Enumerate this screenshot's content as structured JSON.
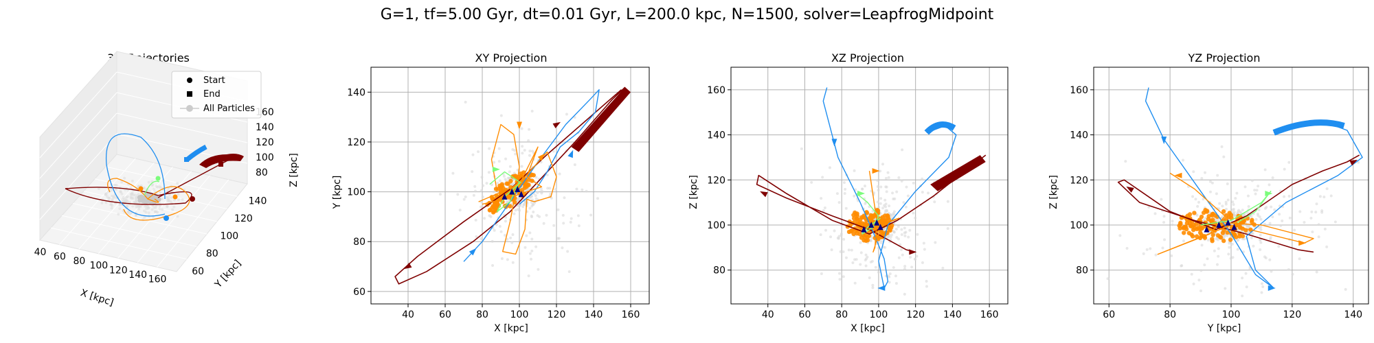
{
  "figure": {
    "suptitle": "G=1, tf=5.00 Gyr, dt=0.01 Gyr, L=200.0 kpc, N=1500, solver=LeapfrogMidpoint"
  },
  "colors": {
    "blue": "#1f8ef0",
    "dark_red": "#7f0000",
    "orange": "#ff8c00",
    "light_green": "#7cfc7c",
    "navy": "#000080",
    "background_particles": "#cccccc"
  },
  "legend": {
    "start": "Start",
    "end": "End",
    "all": "All Particles"
  },
  "chart_data": [
    {
      "type": "line3d",
      "title": "3D Trajectories",
      "xlabel": "X [kpc]",
      "ylabel": "Y [kpc]",
      "zlabel": "Z [kpc]",
      "xticks": [
        "40",
        "60",
        "80",
        "100",
        "120",
        "140",
        "160"
      ],
      "yticks": [
        "60",
        "80",
        "100",
        "120",
        "140"
      ],
      "zticks": [
        "80",
        "100",
        "120",
        "140",
        "160"
      ]
    },
    {
      "type": "line",
      "title": "XY Projection",
      "xlabel": "X [kpc]",
      "ylabel": "Y [kpc]",
      "xlim": [
        20,
        170
      ],
      "ylim": [
        55,
        150
      ],
      "xticks": [
        40,
        60,
        80,
        100,
        120,
        140,
        160
      ],
      "yticks": [
        60,
        80,
        100,
        120,
        140
      ],
      "series": [
        {
          "color": "#7f0000",
          "points": [
            [
              157,
              142
            ],
            [
              150,
              137
            ],
            [
              130,
              120
            ],
            [
              110,
              104
            ],
            [
              95,
              92
            ],
            [
              75,
              80
            ],
            [
              50,
              68
            ],
            [
              35,
              63
            ],
            [
              33,
              66
            ],
            [
              45,
              74
            ],
            [
              70,
              88
            ],
            [
              95,
              101
            ],
            [
              115,
              115
            ],
            [
              135,
              128
            ],
            [
              155,
              141
            ]
          ]
        },
        {
          "color": "#1f8ef0",
          "points": [
            [
              70,
              72
            ],
            [
              80,
              80
            ],
            [
              95,
              96
            ],
            [
              110,
              112
            ],
            [
              125,
              127
            ],
            [
              138,
              137
            ],
            [
              143,
              141
            ],
            [
              141,
              132
            ],
            [
              132,
              124
            ],
            [
              122,
              118
            ],
            [
              115,
              108
            ],
            [
              108,
              100
            ],
            [
              100,
              95
            ]
          ]
        },
        {
          "color": "#ff8c00",
          "points": [
            [
              88,
              100
            ],
            [
              85,
              113
            ],
            [
              90,
              127
            ],
            [
              97,
              123
            ],
            [
              100,
              110
            ],
            [
              98,
              100
            ],
            [
              95,
              88
            ],
            [
              91,
              76
            ],
            [
              98,
              75
            ],
            [
              103,
              85
            ],
            [
              104,
              97
            ],
            [
              108,
              96
            ],
            [
              117,
              98
            ],
            [
              120,
              106
            ],
            [
              115,
              116
            ],
            [
              103,
              106
            ],
            [
              95,
              101
            ]
          ]
        },
        {
          "color": "#ff8c00",
          "points": [
            [
              78,
              96
            ],
            [
              100,
              103
            ],
            [
              110,
              118
            ],
            [
              104,
              106
            ],
            [
              112,
              102
            ],
            [
              96,
              98
            ],
            [
              80,
              95
            ]
          ]
        },
        {
          "color": "#7cfc7c",
          "points": [
            [
              84,
              103
            ],
            [
              92,
              108
            ],
            [
              100,
              104
            ],
            [
              95,
              96
            ],
            [
              88,
              92
            ],
            [
              92,
              98
            ],
            [
              101,
              104
            ]
          ]
        }
      ],
      "arrows": [
        {
          "color": "#7f0000",
          "at": [
            40,
            70
          ],
          "dir": [
            -1,
            -0.6
          ]
        },
        {
          "color": "#7f0000",
          "at": [
            120,
            127
          ],
          "dir": [
            1,
            0.6
          ]
        },
        {
          "color": "#1f8ef0",
          "at": [
            75,
            76
          ],
          "dir": [
            1,
            1
          ]
        },
        {
          "color": "#1f8ef0",
          "at": [
            128,
            115
          ],
          "dir": [
            0.4,
            1
          ]
        },
        {
          "color": "#ff8c00",
          "at": [
            100,
            127
          ],
          "dir": [
            0,
            -1
          ]
        },
        {
          "color": "#ff8c00",
          "at": [
            112,
            114
          ],
          "dir": [
            1,
            1
          ]
        },
        {
          "color": "#7cfc7c",
          "at": [
            87,
            109
          ],
          "dir": [
            1,
            0
          ]
        }
      ]
    },
    {
      "type": "line",
      "title": "XZ Projection",
      "xlabel": "X [kpc]",
      "ylabel": "Z [kpc]",
      "xlim": [
        20,
        170
      ],
      "ylim": [
        65,
        170
      ],
      "xticks": [
        40,
        60,
        80,
        100,
        120,
        140,
        160
      ],
      "yticks": [
        80,
        100,
        120,
        140,
        160
      ],
      "series": [
        {
          "color": "#7f0000",
          "points": [
            [
              158,
              131
            ],
            [
              150,
              126
            ],
            [
              130,
              113
            ],
            [
              110,
              102
            ],
            [
              95,
              96
            ],
            [
              75,
              102
            ],
            [
              50,
              114
            ],
            [
              35,
              122
            ],
            [
              34,
              118
            ],
            [
              50,
              112
            ],
            [
              75,
              104
            ],
            [
              95,
              98
            ],
            [
              115,
              89
            ],
            [
              120,
              88
            ]
          ]
        },
        {
          "color": "#1f8ef0",
          "points": [
            [
              72,
              161
            ],
            [
              70,
              155
            ],
            [
              78,
              130
            ],
            [
              90,
              110
            ],
            [
              98,
              95
            ],
            [
              103,
              85
            ],
            [
              105,
              75
            ],
            [
              103,
              72
            ],
            [
              100,
              84
            ],
            [
              105,
              100
            ],
            [
              120,
              115
            ],
            [
              138,
              130
            ],
            [
              142,
              140
            ],
            [
              136,
              144
            ],
            [
              126,
              141
            ]
          ]
        },
        {
          "color": "#ff8c00",
          "points": [
            [
              95,
              124
            ],
            [
              97,
              113
            ],
            [
              99,
              102
            ],
            [
              98,
              90
            ],
            [
              97,
              88
            ],
            [
              100,
              96
            ],
            [
              102,
              100
            ],
            [
              111,
              103
            ],
            [
              100,
              100
            ],
            [
              92,
              98
            ]
          ]
        },
        {
          "color": "#7cfc7c",
          "points": [
            [
              88,
              114
            ],
            [
              94,
              110
            ],
            [
              100,
              104
            ],
            [
              97,
              99
            ],
            [
              91,
              96
            ],
            [
              94,
              99
            ],
            [
              101,
              103
            ]
          ]
        }
      ],
      "arrows": [
        {
          "color": "#7f0000",
          "at": [
            38,
            114
          ],
          "dir": [
            -1,
            0.5
          ]
        },
        {
          "color": "#7f0000",
          "at": [
            118,
            88
          ],
          "dir": [
            1,
            0
          ]
        },
        {
          "color": "#1f8ef0",
          "at": [
            76,
            137
          ],
          "dir": [
            0,
            -1
          ]
        },
        {
          "color": "#1f8ef0",
          "at": [
            102,
            72
          ],
          "dir": [
            -1,
            0
          ]
        },
        {
          "color": "#ff8c00",
          "at": [
            98,
            124
          ],
          "dir": [
            1,
            0
          ]
        },
        {
          "color": "#7cfc7c",
          "at": [
            90,
            114
          ],
          "dir": [
            1,
            0
          ]
        }
      ]
    },
    {
      "type": "line",
      "title": "YZ Projection",
      "xlabel": "Y [kpc]",
      "ylabel": "Z [kpc]",
      "xlim": [
        55,
        145
      ],
      "ylim": [
        65,
        170
      ],
      "xticks": [
        60,
        80,
        100,
        120,
        140
      ],
      "yticks": [
        80,
        100,
        120,
        140,
        160
      ],
      "series": [
        {
          "color": "#7f0000",
          "points": [
            [
              142,
              131
            ],
            [
              138,
              128
            ],
            [
              130,
              124
            ],
            [
              120,
              118
            ],
            [
              105,
              104
            ],
            [
              95,
              98
            ],
            [
              80,
              106
            ],
            [
              65,
              120
            ],
            [
              63,
              119
            ],
            [
              70,
              110
            ],
            [
              88,
              102
            ],
            [
              105,
              96
            ],
            [
              122,
              89
            ],
            [
              127,
              88
            ]
          ]
        },
        {
          "color": "#1f8ef0",
          "points": [
            [
              73,
              161
            ],
            [
              72,
              155
            ],
            [
              78,
              138
            ],
            [
              90,
              115
            ],
            [
              100,
              96
            ],
            [
              108,
              78
            ],
            [
              114,
              72
            ],
            [
              108,
              80
            ],
            [
              105,
              95
            ],
            [
              118,
              110
            ],
            [
              135,
              122
            ],
            [
              143,
              130
            ],
            [
              138,
              142
            ],
            [
              130,
              146
            ],
            [
              123,
              144
            ],
            [
              114,
              141
            ]
          ]
        },
        {
          "color": "#ff8c00",
          "points": [
            [
              80,
              123
            ],
            [
              88,
              116
            ],
            [
              98,
              104
            ],
            [
              93,
              96
            ],
            [
              76,
              87
            ],
            [
              100,
              100
            ],
            [
              124,
              92
            ],
            [
              127,
              94
            ],
            [
              110,
              100
            ],
            [
              98,
              101
            ]
          ]
        },
        {
          "color": "#7cfc7c",
          "points": [
            [
              90,
              100
            ],
            [
              100,
              102
            ],
            [
              110,
              110
            ],
            [
              113,
              115
            ],
            [
              108,
              106
            ],
            [
              102,
              101
            ]
          ]
        }
      ],
      "arrows": [
        {
          "color": "#7f0000",
          "at": [
            67,
            116
          ],
          "dir": [
            -1,
            0.6
          ]
        },
        {
          "color": "#7f0000",
          "at": [
            140,
            128
          ],
          "dir": [
            1,
            0.5
          ]
        },
        {
          "color": "#1f8ef0",
          "at": [
            78,
            138
          ],
          "dir": [
            0,
            -1
          ]
        },
        {
          "color": "#1f8ef0",
          "at": [
            113,
            72
          ],
          "dir": [
            1,
            0
          ]
        },
        {
          "color": "#ff8c00",
          "at": [
            83,
            122
          ],
          "dir": [
            -1,
            0
          ]
        },
        {
          "color": "#ff8c00",
          "at": [
            123,
            92
          ],
          "dir": [
            1,
            0
          ]
        },
        {
          "color": "#7cfc7c",
          "at": [
            112,
            114
          ],
          "dir": [
            1,
            0
          ]
        }
      ]
    }
  ]
}
